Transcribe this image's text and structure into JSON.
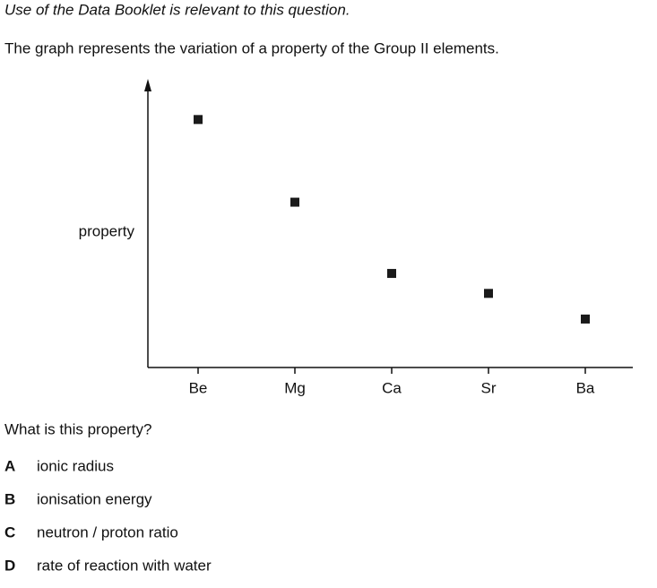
{
  "instruction": "Use of the Data Booklet is relevant to this question.",
  "intro": "The graph represents the variation of a property of the Group II elements.",
  "chart_data": {
    "type": "scatter",
    "y_label": "property",
    "categories": [
      "Be",
      "Mg",
      "Ca",
      "Sr",
      "Ba"
    ],
    "values": [
      87,
      58,
      33,
      26,
      17
    ],
    "color": "#1a1a1a",
    "ylim": [
      0,
      100
    ]
  },
  "question": "What is this property?",
  "options": [
    {
      "letter": "A",
      "text": "ionic radius"
    },
    {
      "letter": "B",
      "text": "ionisation energy"
    },
    {
      "letter": "C",
      "text": "neutron / proton ratio"
    },
    {
      "letter": "D",
      "text": "rate of reaction with water"
    }
  ]
}
